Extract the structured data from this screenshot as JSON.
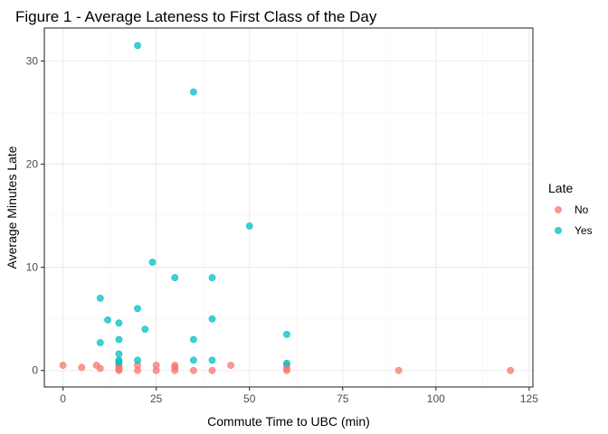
{
  "chart_data": {
    "type": "scatter",
    "title": "Figure 1 - Average Lateness to First Class of the Day",
    "xlabel": "Commute Time to UBC (min)",
    "ylabel": "Average Minutes Late",
    "xlim": [
      -5,
      126
    ],
    "ylim": [
      -1.6,
      33.2
    ],
    "x_ticks": [
      0,
      25,
      50,
      75,
      100,
      125
    ],
    "y_ticks": [
      0,
      10,
      20,
      30
    ],
    "grid": true,
    "legend": {
      "title": "Late",
      "placement": "right",
      "entries": [
        "No",
        "Yes"
      ]
    },
    "colors": {
      "No": "#f8766d",
      "Yes": "#00bfc4"
    },
    "series": [
      {
        "name": "No",
        "points": [
          {
            "x": 0,
            "y": 0.5
          },
          {
            "x": 5,
            "y": 0.3
          },
          {
            "x": 9,
            "y": 0.5
          },
          {
            "x": 10,
            "y": 0.2
          },
          {
            "x": 15,
            "y": 0.7
          },
          {
            "x": 15,
            "y": 0.5
          },
          {
            "x": 15,
            "y": 0.3
          },
          {
            "x": 15,
            "y": 0.1
          },
          {
            "x": 15,
            "y": 0
          },
          {
            "x": 20,
            "y": 0.5
          },
          {
            "x": 20,
            "y": 0
          },
          {
            "x": 25,
            "y": 0.5
          },
          {
            "x": 25,
            "y": 0
          },
          {
            "x": 30,
            "y": 0.5
          },
          {
            "x": 30,
            "y": 0.3
          },
          {
            "x": 30,
            "y": 0
          },
          {
            "x": 35,
            "y": 0
          },
          {
            "x": 40,
            "y": 0
          },
          {
            "x": 45,
            "y": 0.5
          },
          {
            "x": 60,
            "y": 0.5
          },
          {
            "x": 60,
            "y": 0.2
          },
          {
            "x": 60,
            "y": 0
          },
          {
            "x": 90,
            "y": 0
          },
          {
            "x": 120,
            "y": 0
          }
        ]
      },
      {
        "name": "Yes",
        "points": [
          {
            "x": 10,
            "y": 2.7
          },
          {
            "x": 10,
            "y": 7
          },
          {
            "x": 12,
            "y": 4.9
          },
          {
            "x": 15,
            "y": 4.6
          },
          {
            "x": 15,
            "y": 3
          },
          {
            "x": 15,
            "y": 1.6
          },
          {
            "x": 15,
            "y": 1
          },
          {
            "x": 15,
            "y": 0.8
          },
          {
            "x": 20,
            "y": 31.5
          },
          {
            "x": 20,
            "y": 6
          },
          {
            "x": 20,
            "y": 1
          },
          {
            "x": 22,
            "y": 4
          },
          {
            "x": 24,
            "y": 10.5
          },
          {
            "x": 30,
            "y": 9
          },
          {
            "x": 35,
            "y": 27
          },
          {
            "x": 35,
            "y": 3
          },
          {
            "x": 35,
            "y": 1
          },
          {
            "x": 40,
            "y": 9
          },
          {
            "x": 40,
            "y": 5
          },
          {
            "x": 40,
            "y": 1
          },
          {
            "x": 50,
            "y": 14
          },
          {
            "x": 60,
            "y": 3.5
          },
          {
            "x": 60,
            "y": 0.7
          }
        ]
      }
    ]
  }
}
